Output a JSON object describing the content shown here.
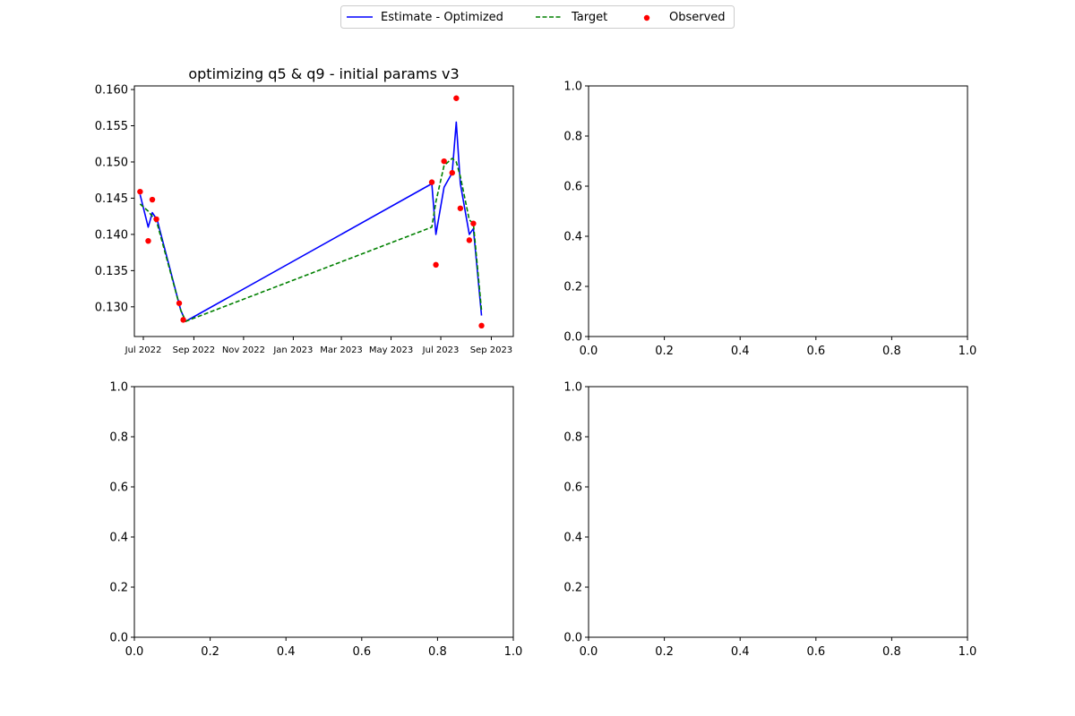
{
  "legend": {
    "placement": "top-center",
    "entries": [
      {
        "label": "Estimate - Optimized",
        "style": "solid-line",
        "color": "#0000ff"
      },
      {
        "label": "Target",
        "style": "dashed-line",
        "color": "#008000"
      },
      {
        "label": "Observed",
        "style": "dot",
        "color": "#ff0000"
      }
    ]
  },
  "chart_data": [
    {
      "type": "line",
      "title": "optimizing q5 & q9 - initial params v3",
      "xlabel": "",
      "ylabel": "",
      "x_axis_type": "date",
      "xlim": [
        "2022-06-20",
        "2023-09-28"
      ],
      "ylim": [
        0.1259,
        0.1605
      ],
      "x_ticks": [
        "Jul 2022",
        "Sep 2022",
        "Nov 2022",
        "Jan 2023",
        "Mar 2023",
        "May 2023",
        "Jul 2023",
        "Sep 2023"
      ],
      "x_tick_dates": [
        "2022-07-01",
        "2022-09-01",
        "2022-11-01",
        "2023-01-01",
        "2023-03-01",
        "2023-05-01",
        "2023-07-01",
        "2023-09-01"
      ],
      "y_ticks": [
        "0.130",
        "0.135",
        "0.140",
        "0.145",
        "0.150",
        "0.155",
        "0.160"
      ],
      "y_tick_values": [
        0.13,
        0.135,
        0.14,
        0.145,
        0.15,
        0.155,
        0.16
      ],
      "grid": false,
      "series": [
        {
          "name": "Estimate - Optimized",
          "kind": "line",
          "color": "#0000ff",
          "x": [
            "2022-06-27",
            "2022-07-07",
            "2022-07-12",
            "2022-07-18",
            "2022-08-16",
            "2022-08-22",
            "2023-06-20",
            "2023-06-25",
            "2023-07-05",
            "2023-07-15",
            "2023-07-20",
            "2023-07-25",
            "2023-08-05",
            "2023-08-10",
            "2023-08-20"
          ],
          "y": [
            0.1455,
            0.141,
            0.143,
            0.142,
            0.1295,
            0.128,
            0.147,
            0.14,
            0.1465,
            0.1485,
            0.1555,
            0.147,
            0.14,
            0.1408,
            0.1288
          ]
        },
        {
          "name": "Target",
          "kind": "dashed-line",
          "color": "#008000",
          "x": [
            "2022-06-27",
            "2022-07-07",
            "2022-07-12",
            "2022-07-18",
            "2022-08-16",
            "2022-08-22",
            "2023-06-20",
            "2023-06-25",
            "2023-07-05",
            "2023-07-15",
            "2023-07-20",
            "2023-07-25",
            "2023-08-05",
            "2023-08-10",
            "2023-08-20"
          ],
          "y": [
            0.1442,
            0.1432,
            0.1425,
            0.1415,
            0.1295,
            0.128,
            0.141,
            0.1445,
            0.1495,
            0.1505,
            0.15,
            0.148,
            0.142,
            0.1415,
            0.1295
          ]
        },
        {
          "name": "Observed",
          "kind": "scatter",
          "color": "#ff0000",
          "x": [
            "2022-06-27",
            "2022-07-07",
            "2022-07-12",
            "2022-07-17",
            "2022-08-14",
            "2022-08-19",
            "2023-06-20",
            "2023-06-25",
            "2023-07-05",
            "2023-07-15",
            "2023-07-20",
            "2023-07-25",
            "2023-08-05",
            "2023-08-10",
            "2023-08-20"
          ],
          "y": [
            0.1459,
            0.1391,
            0.1448,
            0.1421,
            0.1305,
            0.1282,
            0.1472,
            0.1358,
            0.1501,
            0.1485,
            0.1588,
            0.1436,
            0.1392,
            0.1415,
            0.1274
          ]
        }
      ]
    },
    {
      "type": "line",
      "title": "",
      "xlim": [
        0,
        1
      ],
      "ylim": [
        0,
        1
      ],
      "x_ticks": [
        "0.0",
        "0.2",
        "0.4",
        "0.6",
        "0.8",
        "1.0"
      ],
      "x_tick_values": [
        0,
        0.2,
        0.4,
        0.6,
        0.8,
        1.0
      ],
      "y_ticks": [
        "0.0",
        "0.2",
        "0.4",
        "0.6",
        "0.8",
        "1.0"
      ],
      "y_tick_values": [
        0,
        0.2,
        0.4,
        0.6,
        0.8,
        1.0
      ],
      "grid": false,
      "series": []
    },
    {
      "type": "line",
      "title": "",
      "xlim": [
        0,
        1
      ],
      "ylim": [
        0,
        1
      ],
      "x_ticks": [
        "0.0",
        "0.2",
        "0.4",
        "0.6",
        "0.8",
        "1.0"
      ],
      "x_tick_values": [
        0,
        0.2,
        0.4,
        0.6,
        0.8,
        1.0
      ],
      "y_ticks": [
        "0.0",
        "0.2",
        "0.4",
        "0.6",
        "0.8",
        "1.0"
      ],
      "y_tick_values": [
        0,
        0.2,
        0.4,
        0.6,
        0.8,
        1.0
      ],
      "grid": false,
      "series": []
    },
    {
      "type": "line",
      "title": "",
      "xlim": [
        0,
        1
      ],
      "ylim": [
        0,
        1
      ],
      "x_ticks": [
        "0.0",
        "0.2",
        "0.4",
        "0.6",
        "0.8",
        "1.0"
      ],
      "x_tick_values": [
        0,
        0.2,
        0.4,
        0.6,
        0.8,
        1.0
      ],
      "y_ticks": [
        "0.0",
        "0.2",
        "0.4",
        "0.6",
        "0.8",
        "1.0"
      ],
      "y_tick_values": [
        0,
        0.2,
        0.4,
        0.6,
        0.8,
        1.0
      ],
      "grid": false,
      "series": []
    }
  ]
}
